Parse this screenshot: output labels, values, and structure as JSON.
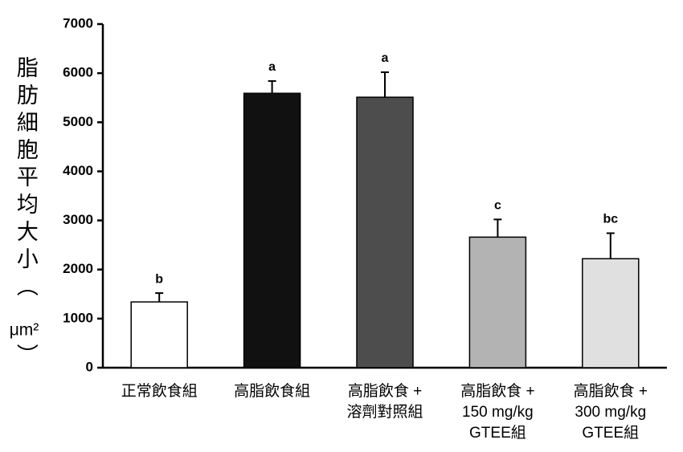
{
  "chart_data": {
    "type": "bar",
    "y_label": [
      "脂肪細胞平均大小（",
      "μm²",
      "）"
    ],
    "categories": [
      [
        "正常飲食組"
      ],
      [
        "高脂飲食組"
      ],
      [
        "高脂飲食 +",
        "溶劑對照組"
      ],
      [
        "高脂飲食 +",
        "150 mg/kg",
        "GTEE組"
      ],
      [
        "高脂飲食 +",
        "300 mg/kg",
        "GTEE組"
      ]
    ],
    "values": [
      1340,
      5590,
      5510,
      2660,
      2220
    ],
    "errors": [
      180,
      250,
      510,
      360,
      520
    ],
    "value_labels": [
      "b",
      "a",
      "a",
      "c",
      "bc"
    ],
    "colors": [
      "#ffffff",
      "#111111",
      "#4d4d4d",
      "#b3b3b3",
      "#e0e0e0"
    ],
    "ylim": [
      0,
      7000
    ],
    "yticks": [
      0,
      1000,
      2000,
      3000,
      4000,
      5000,
      6000,
      7000
    ]
  }
}
